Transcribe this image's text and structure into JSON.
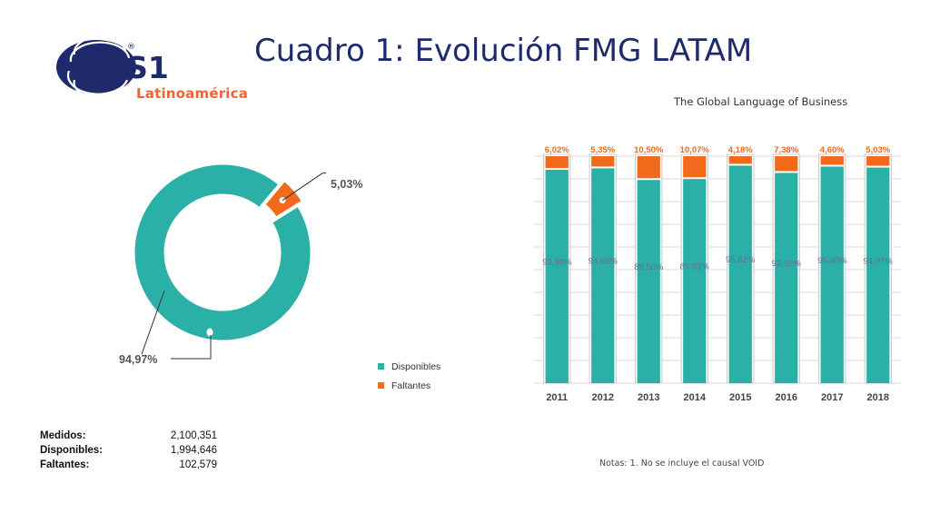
{
  "header": {
    "title": "Cuadro 1:  Evolución FMG LATAM",
    "tagline": "The Global Language of Business"
  },
  "logo": {
    "text": "GS1",
    "region": "Latinoamérica",
    "registered": "®"
  },
  "colors": {
    "disponibles": "#2ab0a6",
    "faltantes": "#f26a1b",
    "title": "#1e2a6b",
    "logo_blue": "#1e2a6b",
    "logo_orange": "#f26334"
  },
  "donut": {
    "label_small": "5,03%",
    "label_large": "94,97%"
  },
  "legend": [
    {
      "label": "Disponibles",
      "color": "#2ab0a6"
    },
    {
      "label": "Faltantes",
      "color": "#f26a1b"
    }
  ],
  "stats": [
    {
      "label": "Medidos:",
      "value": "2,100,351"
    },
    {
      "label": "Disponibles:",
      "value": "1,994,646"
    },
    {
      "label": "Faltantes:",
      "value": "102,579"
    }
  ],
  "notes": "Notas:   1. No se incluye el causal VOID",
  "chart_data": [
    {
      "type": "pie",
      "labels": [
        "Disponibles",
        "Faltantes"
      ],
      "values": [
        94.97,
        5.03
      ],
      "value_labels": [
        "94,97%",
        "5,03%"
      ],
      "legend_position": "bottom-right"
    },
    {
      "type": "bar",
      "stacked": true,
      "categories": [
        "2011",
        "2012",
        "2013",
        "2014",
        "2015",
        "2016",
        "2017",
        "2018"
      ],
      "series": [
        {
          "name": "Disponibles",
          "values": [
            93.98,
            94.65,
            89.5,
            89.93,
            95.82,
            92.62,
            95.4,
            94.97
          ],
          "labels": [
            "93,98%",
            "94,65%",
            "89,50%",
            "89,93%",
            "95,82%",
            "92,62%",
            "95,40%",
            "94,97%"
          ]
        },
        {
          "name": "Faltantes",
          "values": [
            6.02,
            5.35,
            10.5,
            10.07,
            4.18,
            7.38,
            4.6,
            5.03
          ],
          "labels": [
            "6,02%",
            "5,35%",
            "10,50%",
            "10,07%",
            "4,18%",
            "7,38%",
            "4,60%",
            "5,03%"
          ]
        }
      ],
      "ylim": [
        0,
        100
      ],
      "grid": true
    }
  ]
}
